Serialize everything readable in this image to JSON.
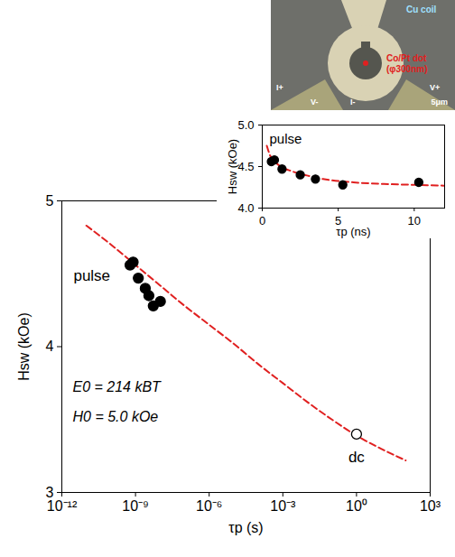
{
  "chart_data": [
    {
      "type": "scatter",
      "xlabel": "τp (s)",
      "ylabel": "Hsw (kOe)",
      "log": "x",
      "xlim": [
        1e-12,
        1000
      ],
      "xticks": [
        {
          "value": 1e-12,
          "label": "10⁻¹²"
        },
        {
          "value": 1e-09,
          "label": "10⁻⁹"
        },
        {
          "value": 1e-06,
          "label": "10⁻⁶"
        },
        {
          "value": 0.001,
          "label": "10⁻³"
        },
        {
          "value": 1,
          "label": "10⁰"
        },
        {
          "value": 1000,
          "label": "10³"
        }
      ],
      "ylim": [
        3,
        5
      ],
      "yticks": [
        3,
        4,
        5
      ],
      "annotations": [
        "E0 = 214 kBT",
        "H0 = 5.0 kOe"
      ],
      "series": [
        {
          "type": "line",
          "color": "#e02020",
          "line_style": "dashed",
          "x": [
            1e-11,
            1e-10,
            1e-09,
            1e-08,
            1e-07,
            1e-06,
            1e-05,
            0.0001,
            0.001,
            0.01,
            0.1,
            1,
            10,
            100
          ],
          "values": [
            4.83,
            4.7,
            4.56,
            4.42,
            4.28,
            4.15,
            4.02,
            3.88,
            3.75,
            3.62,
            3.5,
            3.39,
            3.3,
            3.22
          ]
        },
        {
          "name": "pulse",
          "type": "scatter",
          "color": "#000000",
          "marker": "circle",
          "x": [
            6e-10,
            8e-10,
            1.3e-09,
            2.5e-09,
            3.5e-09,
            5.3e-09,
            1.03e-08
          ],
          "values": [
            4.56,
            4.58,
            4.47,
            4.4,
            4.35,
            4.28,
            4.31
          ]
        },
        {
          "name": "dc",
          "type": "scatter",
          "color": "#000000",
          "marker": "open_circle",
          "x": [
            1
          ],
          "values": [
            3.4
          ]
        }
      ]
    },
    {
      "type": "scatter",
      "xlabel": "τp (ns)",
      "ylabel": "Hsw (kOe)",
      "xlim": [
        0,
        12
      ],
      "xticks": [
        0,
        5,
        10
      ],
      "ylim": [
        4.0,
        5.0
      ],
      "yticks": [
        {
          "value": 4.0,
          "label": "4.0"
        },
        {
          "value": 4.5,
          "label": "4.5"
        },
        {
          "value": 5.0,
          "label": "5.0"
        }
      ],
      "series": [
        {
          "type": "line",
          "color": "#e02020",
          "line_style": "dashed",
          "x": [
            0.3,
            0.5,
            1,
            2,
            3,
            4,
            6,
            8,
            10,
            12
          ],
          "values": [
            4.75,
            4.64,
            4.53,
            4.44,
            4.39,
            4.35,
            4.31,
            4.29,
            4.28,
            4.27
          ]
        },
        {
          "name": "pulse",
          "type": "scatter",
          "color": "#000000",
          "marker": "circle",
          "x": [
            0.6,
            0.8,
            1.3,
            2.5,
            3.5,
            5.3,
            10.3
          ],
          "values": [
            4.56,
            4.58,
            4.47,
            4.4,
            4.35,
            4.28,
            4.31
          ]
        }
      ]
    }
  ],
  "image": {
    "labels": [
      "Cu coil",
      "Co/Pt dot",
      "(φ300nm)",
      "I+",
      "V+",
      "V-",
      "I-",
      "5μm"
    ]
  }
}
